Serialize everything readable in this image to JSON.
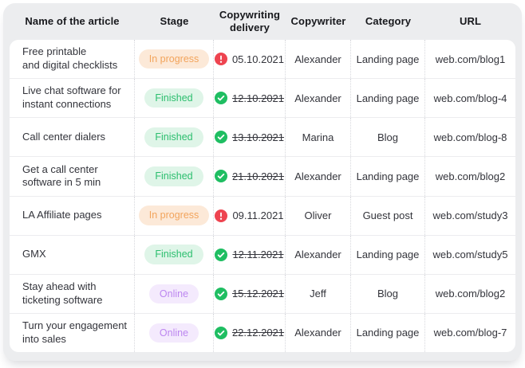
{
  "table": {
    "columns": [
      {
        "key": "name",
        "label": "Name of the article"
      },
      {
        "key": "stage",
        "label": "Stage"
      },
      {
        "key": "delivery",
        "label": "Copywriting\ndelivery"
      },
      {
        "key": "copywriter",
        "label": "Copywriter"
      },
      {
        "key": "category",
        "label": "Category"
      },
      {
        "key": "url",
        "label": "URL"
      }
    ],
    "rows": [
      {
        "name": "Free printable\nand digital checklists",
        "stage": "In progress",
        "stage_variant": "in-progress",
        "delivery": {
          "icon": "alert",
          "date": "05.10.2021",
          "struck": false
        },
        "copywriter": "Alexander",
        "category": "Landing page",
        "url": "web.com/blog1"
      },
      {
        "name": "Live chat software for\ninstant connections",
        "stage": "Finished",
        "stage_variant": "finished",
        "delivery": {
          "icon": "check",
          "date": "12.10.2021",
          "struck": true
        },
        "copywriter": "Alexander",
        "category": "Landing page",
        "url": "web.com/blog-4"
      },
      {
        "name": "Call center dialers",
        "stage": "Finished",
        "stage_variant": "finished",
        "delivery": {
          "icon": "check",
          "date": "13.10.2021",
          "struck": true
        },
        "copywriter": "Marina",
        "category": "Blog",
        "url": "web.com/blog-8"
      },
      {
        "name": "Get a call center\nsoftware in 5 min",
        "stage": "Finished",
        "stage_variant": "finished",
        "delivery": {
          "icon": "check",
          "date": "21.10.2021",
          "struck": true
        },
        "copywriter": "Alexander",
        "category": "Landing page",
        "url": "web.com/blog2"
      },
      {
        "name": "LA Affiliate pages",
        "stage": "In progress",
        "stage_variant": "in-progress",
        "delivery": {
          "icon": "alert",
          "date": "09.11.2021",
          "struck": false
        },
        "copywriter": "Oliver",
        "category": "Guest post",
        "url": "web.com/study3"
      },
      {
        "name": "GMX",
        "stage": "Finished",
        "stage_variant": "finished",
        "delivery": {
          "icon": "check",
          "date": "12.11.2021",
          "struck": true
        },
        "copywriter": "Alexander",
        "category": "Landing page",
        "url": "web.com/study5"
      },
      {
        "name": "Stay ahead with\nticketing software",
        "stage": "Online",
        "stage_variant": "online",
        "delivery": {
          "icon": "check",
          "date": "15.12.2021",
          "struck": true
        },
        "copywriter": "Jeff",
        "category": "Blog",
        "url": "web.com/blog2"
      },
      {
        "name": "Turn your engagement\ninto sales",
        "stage": "Online",
        "stage_variant": "online",
        "delivery": {
          "icon": "check",
          "date": "22.12.2021",
          "struck": true
        },
        "copywriter": "Alexander",
        "category": "Landing page",
        "url": "web.com/blog-7"
      }
    ]
  },
  "icons": {
    "check": "check-icon",
    "alert": "alert-icon"
  },
  "colors": {
    "card_bg": "#ECEDEF",
    "panel_bg": "#FFFFFF",
    "header_text": "#17181C",
    "body_text": "#33343B",
    "row_divider": "#ECECEF",
    "col_divider": "#D7D8DD",
    "stage_in_progress_bg": "#FCE9D8",
    "stage_in_progress_text": "#F2A45C",
    "stage_finished_bg": "#DFF5E8",
    "stage_finished_text": "#2BBE6E",
    "stage_online_bg": "#F4EAFD",
    "stage_online_text": "#BC86F0",
    "alert_icon": "#EE4450",
    "check_icon": "#1FBE62"
  }
}
